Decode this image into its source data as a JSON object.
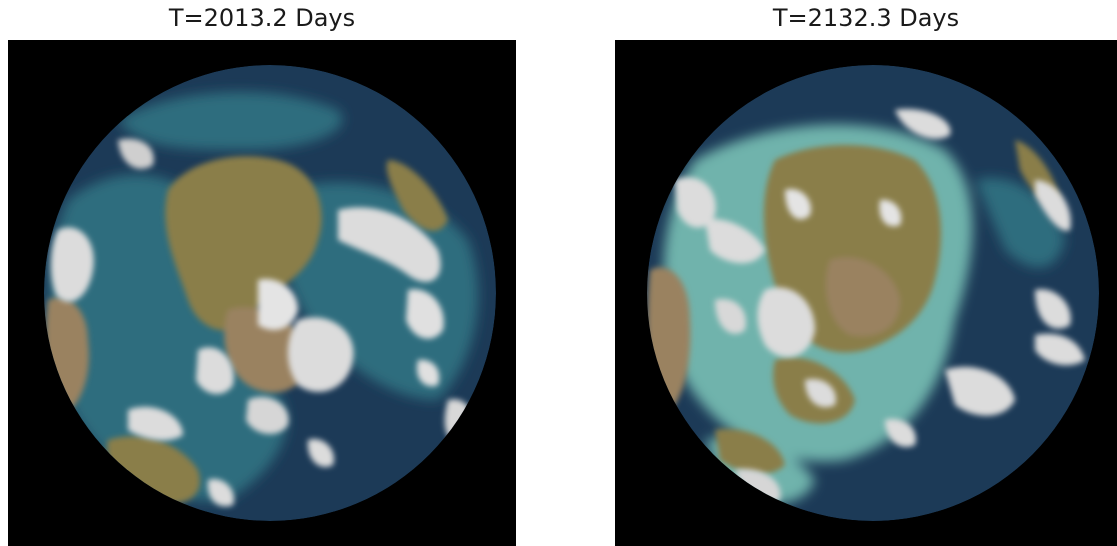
{
  "panels": [
    {
      "title": "T=2013.2 Days"
    },
    {
      "title": "T=2132.3 Days"
    }
  ],
  "colors": {
    "background": "#000000",
    "ocean_deep": "#1c3a57",
    "ocean_shallow": "#2f6d7e",
    "shelf": "#6fb3ac",
    "land_olive": "#8a7e4a",
    "land_tan": "#9a8260",
    "ice": "#dcdcdc"
  }
}
